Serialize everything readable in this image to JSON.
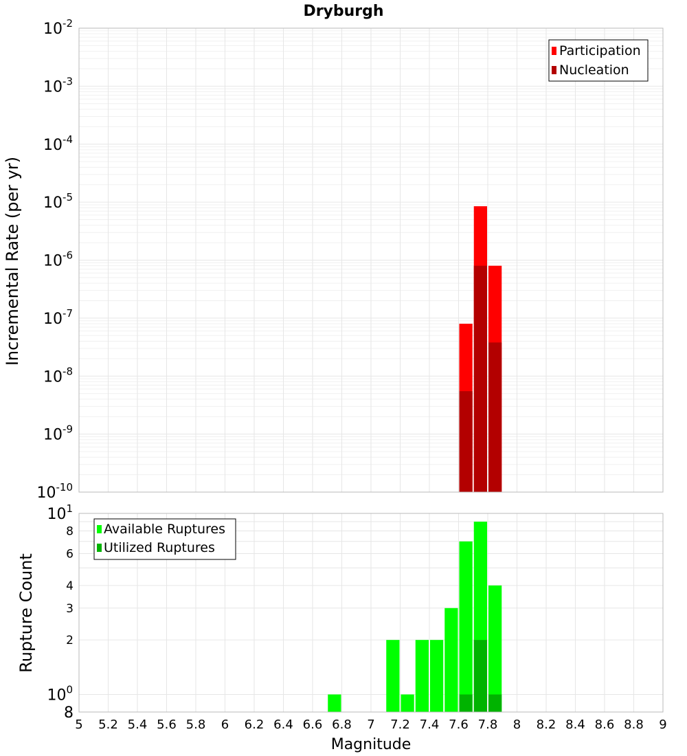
{
  "title": "Dryburgh",
  "chart_data": [
    {
      "type": "bar",
      "name": "top-panel",
      "ylabel": "Incremental Rate (per yr)",
      "yscale": "log",
      "ylim": [
        1e-10,
        0.01
      ],
      "xlim": [
        5,
        9
      ],
      "grid": true,
      "legend_position": "top-right",
      "y_tick_exponents": [
        -10,
        -9,
        -8,
        -7,
        -6,
        -5,
        -4,
        -3,
        -2
      ],
      "bin_width": 0.1,
      "series": [
        {
          "name": "Participation",
          "color": "#ff0000",
          "points": [
            {
              "x": 7.65,
              "y": 8e-08
            },
            {
              "x": 7.75,
              "y": 8.5e-06
            },
            {
              "x": 7.85,
              "y": 8e-07
            }
          ]
        },
        {
          "name": "Nucleation",
          "color": "#b30000",
          "points": [
            {
              "x": 7.65,
              "y": 5.5e-09
            },
            {
              "x": 7.75,
              "y": 8e-07
            },
            {
              "x": 7.85,
              "y": 3.8e-08
            }
          ]
        }
      ]
    },
    {
      "type": "bar",
      "name": "bottom-panel",
      "ylabel": "Rupture Count",
      "xlabel": "Magnitude",
      "yscale": "log",
      "ylim": [
        0.8,
        10
      ],
      "xlim": [
        5,
        9
      ],
      "grid": true,
      "legend_position": "top-left",
      "y_tick_values": [
        2,
        3,
        4,
        6,
        8
      ],
      "y_tick_labels": [
        "2",
        "3",
        "4",
        "6",
        "8"
      ],
      "x_ticks": [
        "5",
        "5.2",
        "5.4",
        "5.6",
        "5.8",
        "6",
        "6.2",
        "6.4",
        "6.6",
        "6.8",
        "7",
        "7.2",
        "7.4",
        "7.6",
        "7.8",
        "8",
        "8.2",
        "8.4",
        "8.6",
        "8.8",
        "9"
      ],
      "bin_width": 0.1,
      "series": [
        {
          "name": "Available Ruptures",
          "color": "#00ff00",
          "points": [
            {
              "x": 6.75,
              "y": 1
            },
            {
              "x": 7.15,
              "y": 2
            },
            {
              "x": 7.25,
              "y": 1
            },
            {
              "x": 7.35,
              "y": 2
            },
            {
              "x": 7.45,
              "y": 2
            },
            {
              "x": 7.55,
              "y": 3
            },
            {
              "x": 7.65,
              "y": 7
            },
            {
              "x": 7.75,
              "y": 9
            },
            {
              "x": 7.85,
              "y": 4
            }
          ]
        },
        {
          "name": "Utilized Ruptures",
          "color": "#00b300",
          "points": [
            {
              "x": 7.65,
              "y": 1
            },
            {
              "x": 7.75,
              "y": 2
            },
            {
              "x": 7.85,
              "y": 1
            }
          ]
        }
      ]
    }
  ]
}
